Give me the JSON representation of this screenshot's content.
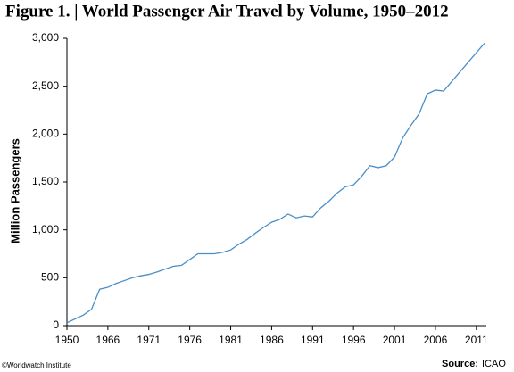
{
  "chart_data": {
    "type": "line",
    "title": "Figure 1. | World Passenger Air Travel by Volume, 1950–2012",
    "y_label": "Million Passengers",
    "credit": "©Worldwatch Institute",
    "source_label": "Source:",
    "source": "ICAO",
    "categories": [
      "1950",
      null,
      null,
      null,
      null,
      "1966",
      null,
      null,
      null,
      null,
      "1971",
      null,
      null,
      null,
      null,
      "1976",
      null,
      null,
      null,
      null,
      "1981",
      null,
      null,
      null,
      null,
      "1986",
      null,
      null,
      null,
      null,
      "1991",
      null,
      null,
      null,
      null,
      "1996",
      null,
      null,
      null,
      null,
      "2001",
      null,
      null,
      null,
      null,
      "2006",
      null,
      null,
      null,
      null,
      "2011",
      null
    ],
    "series": [
      {
        "name": "Passengers",
        "color": "#4a8fc8",
        "values": [
          30,
          70,
          110,
          170,
          380,
          400,
          440,
          470,
          500,
          520,
          535,
          560,
          590,
          620,
          630,
          690,
          750,
          750,
          750,
          765,
          790,
          850,
          900,
          965,
          1025,
          1080,
          1110,
          1165,
          1125,
          1145,
          1135,
          1230,
          1300,
          1385,
          1450,
          1470,
          1560,
          1670,
          1650,
          1670,
          1760,
          1960,
          2090,
          2210,
          2420,
          2460,
          2450,
          2550,
          2650,
          2750,
          2850,
          2950
        ]
      }
    ],
    "ylim": [
      0,
      3000
    ],
    "yticks": [
      0,
      500,
      {
        "value": 1000,
        "label": "1,000"
      },
      {
        "value": 1500,
        "label": "1,500"
      },
      {
        "value": 2000,
        "label": "2,000"
      },
      {
        "value": 2500,
        "label": "2,500"
      },
      {
        "value": 3000,
        "label": "3,000"
      }
    ],
    "grid": false
  }
}
